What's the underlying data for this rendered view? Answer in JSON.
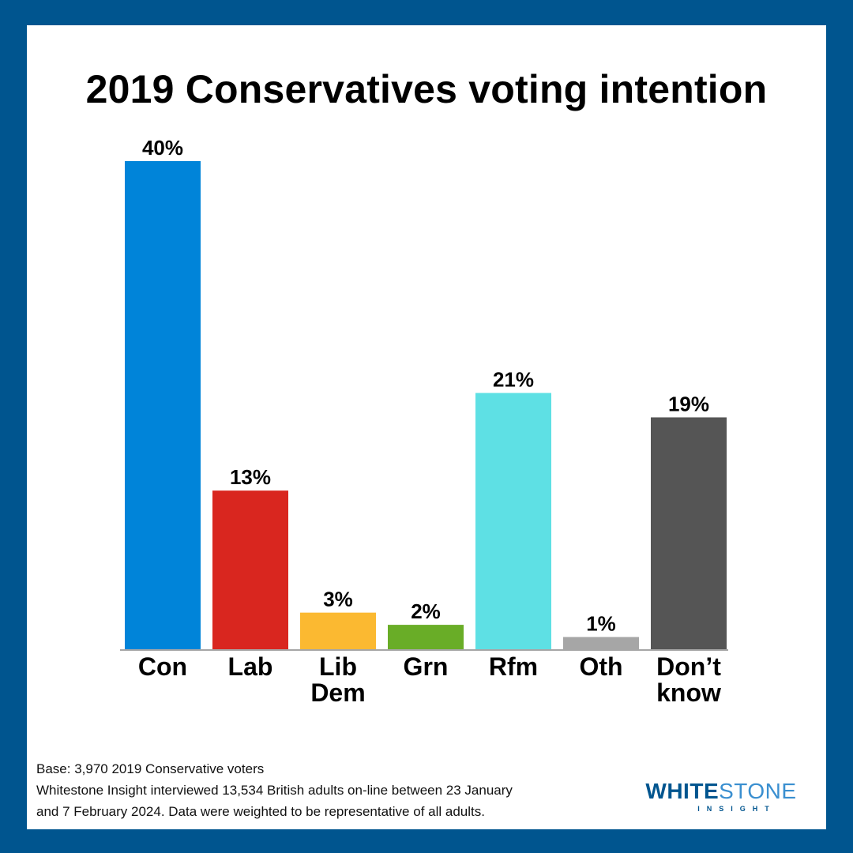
{
  "title": "2019 Conservatives voting intention",
  "chart_data": {
    "type": "bar",
    "title": "2019 Conservatives voting intention",
    "xlabel": "",
    "ylabel": "",
    "ylim": [
      0,
      40
    ],
    "grid": false,
    "categories": [
      [
        "Con"
      ],
      [
        "Lab"
      ],
      [
        "Lib",
        "Dem"
      ],
      [
        "Grn"
      ],
      [
        "Rfm"
      ],
      [
        "Oth"
      ],
      [
        "Don’t",
        "know"
      ]
    ],
    "values": [
      40,
      13,
      3,
      2,
      21,
      1,
      19
    ],
    "value_labels": [
      "40%",
      "13%",
      "3%",
      "2%",
      "21%",
      "1%",
      "19%"
    ],
    "colors": [
      "#0084d9",
      "#d9261f",
      "#fbb931",
      "#69ad27",
      "#5ee0e4",
      "#a6a6a6",
      "#555555"
    ]
  },
  "footer": {
    "base": "Base: 3,970 2019 Conservative voters",
    "note_line1": "Whitestone Insight interviewed 13,534 British adults on-line between 23 January",
    "note_line2": "and 7 February 2024. Data were weighted to be representative of all adults."
  },
  "logo": {
    "word_a": "WHITE",
    "word_b": "STONE",
    "sub": "INSIGHT"
  },
  "colors": {
    "frame": "#00558f",
    "background": "#ffffff",
    "axis": "#a6a6a6"
  }
}
